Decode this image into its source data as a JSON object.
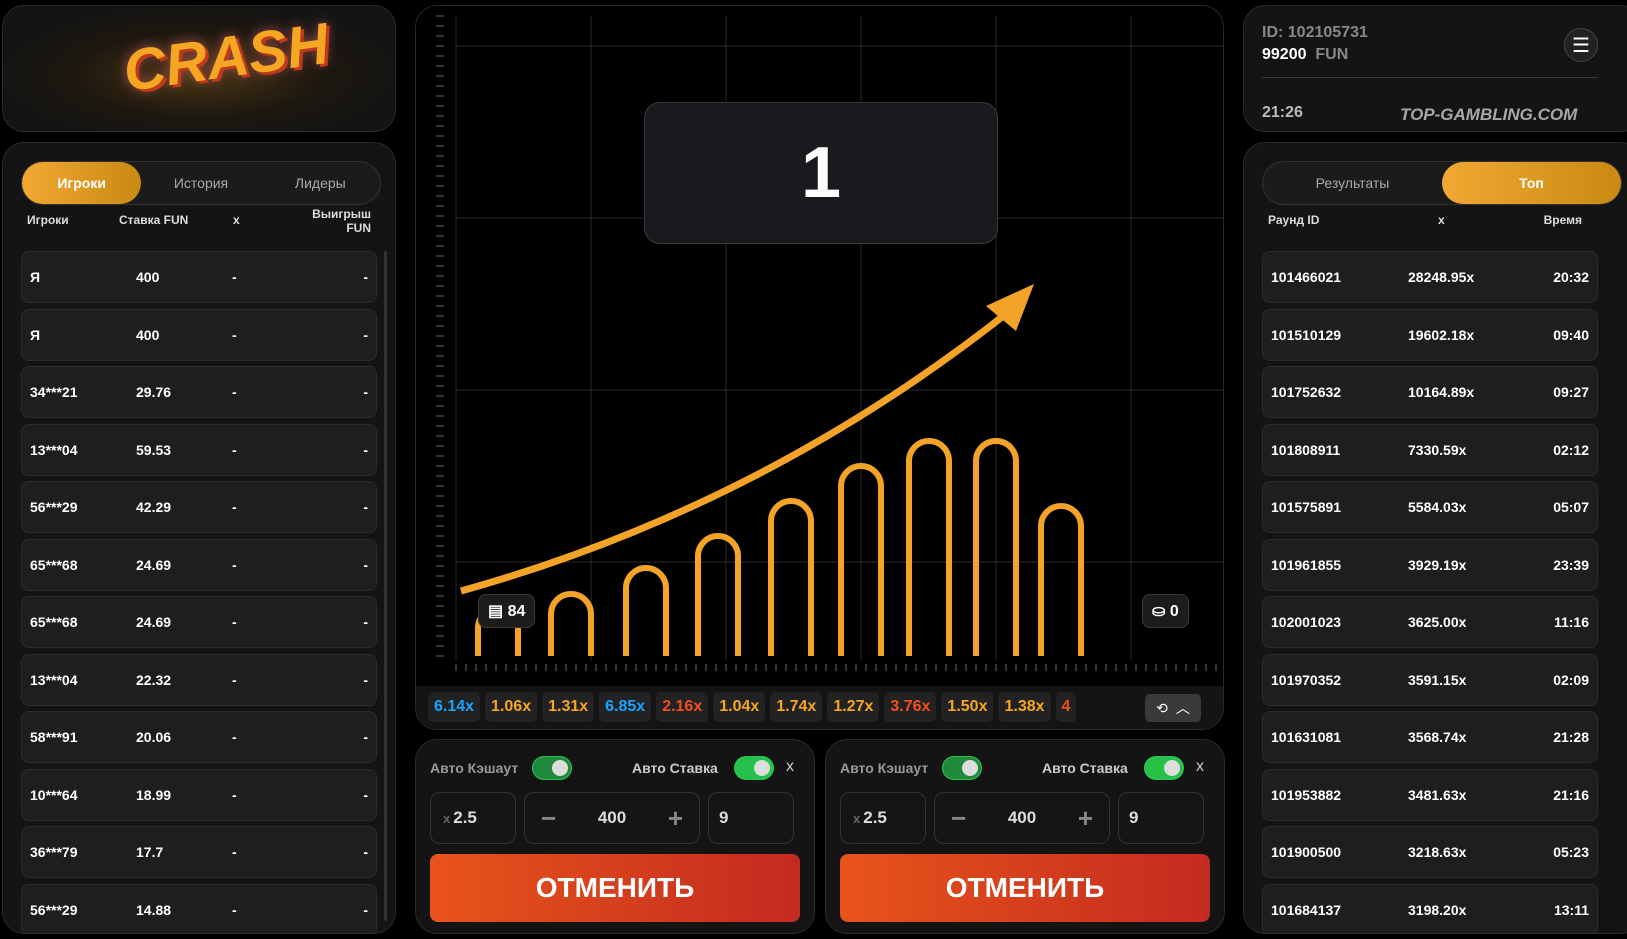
{
  "logo": {
    "text": "CRASH"
  },
  "players": {
    "tabs": [
      "Игроки",
      "История",
      "Лидеры"
    ],
    "active_tab": 0,
    "headers": {
      "player": "Игроки",
      "bet": "Ставка FUN",
      "x": "x",
      "win": "Выигрыш FUN"
    },
    "rows": [
      [
        "Я",
        "400",
        "-",
        "-"
      ],
      [
        "Я",
        "400",
        "-",
        "-"
      ],
      [
        "34***21",
        "29.76",
        "-",
        "-"
      ],
      [
        "13***04",
        "59.53",
        "-",
        "-"
      ],
      [
        "56***29",
        "42.29",
        "-",
        "-"
      ],
      [
        "65***68",
        "24.69",
        "-",
        "-"
      ],
      [
        "65***68",
        "24.69",
        "-",
        "-"
      ],
      [
        "13***04",
        "22.32",
        "-",
        "-"
      ],
      [
        "58***91",
        "20.06",
        "-",
        "-"
      ],
      [
        "10***64",
        "18.99",
        "-",
        "-"
      ],
      [
        "36***79",
        "17.7",
        "-",
        "-"
      ],
      [
        "56***29",
        "14.88",
        "-",
        "-"
      ]
    ]
  },
  "game": {
    "multiplier": "1",
    "players_count": "84",
    "cashout_count": "0",
    "history": [
      {
        "v": "6.14x",
        "c": "#1aa3ff"
      },
      {
        "v": "1.06x",
        "c": "#f5a623"
      },
      {
        "v": "1.31x",
        "c": "#f5a623"
      },
      {
        "v": "6.85x",
        "c": "#1aa3ff"
      },
      {
        "v": "2.16x",
        "c": "#f0501e"
      },
      {
        "v": "1.04x",
        "c": "#f5a623"
      },
      {
        "v": "1.74x",
        "c": "#f5a623"
      },
      {
        "v": "1.27x",
        "c": "#f5a623"
      },
      {
        "v": "3.76x",
        "c": "#f0501e"
      },
      {
        "v": "1.50x",
        "c": "#f5a623"
      },
      {
        "v": "1.38x",
        "c": "#f5a623"
      },
      {
        "v": "4",
        "c": "#f0501e"
      }
    ]
  },
  "bets": [
    {
      "auto_cashout": "Авто Кэшаут",
      "auto_bet": "Авто Ставка",
      "close": "x",
      "cashout_prefix": "x",
      "cashout_value": "2.5",
      "amount": "400",
      "minus": "−",
      "plus": "+",
      "rounds": "9",
      "cancel": "ОТМЕНИТЬ",
      "auto_cashout_on": true,
      "auto_bet_on": true
    },
    {
      "auto_cashout": "Авто Кэшаут",
      "auto_bet": "Авто Ставка",
      "close": "x",
      "cashout_prefix": "x",
      "cashout_value": "2.5",
      "amount": "400",
      "minus": "−",
      "plus": "+",
      "rounds": "9",
      "cancel": "ОТМЕНИТЬ",
      "auto_cashout_on": true,
      "auto_bet_on": true
    }
  ],
  "account": {
    "id": "ID: 102105731",
    "balance": "99200",
    "currency": "FUN",
    "time": "21:26"
  },
  "top": {
    "tabs": [
      "Результаты",
      "Топ"
    ],
    "active_tab": 1,
    "headers": {
      "round": "Раунд ID",
      "x": "x",
      "time": "Время"
    },
    "rows": [
      [
        "101466021",
        "28248.95x",
        "20:32"
      ],
      [
        "101510129",
        "19602.18x",
        "09:40"
      ],
      [
        "101752632",
        "10164.89x",
        "09:27"
      ],
      [
        "101808911",
        "7330.59x",
        "02:12"
      ],
      [
        "101575891",
        "5584.03x",
        "05:07"
      ],
      [
        "101961855",
        "3929.19x",
        "23:39"
      ],
      [
        "102001023",
        "3625.00x",
        "11:16"
      ],
      [
        "101970352",
        "3591.15x",
        "02:09"
      ],
      [
        "101631081",
        "3568.74x",
        "21:28"
      ],
      [
        "101953882",
        "3481.63x",
        "21:16"
      ],
      [
        "101900500",
        "3218.63x",
        "05:23"
      ],
      [
        "101684137",
        "3198.20x",
        "13:11"
      ]
    ]
  },
  "watermark": "TOP-GAMBLING.COM",
  "colors": {
    "accent": "#f5a623",
    "cancel": "#e0451c",
    "toggle": "#25c24a"
  }
}
